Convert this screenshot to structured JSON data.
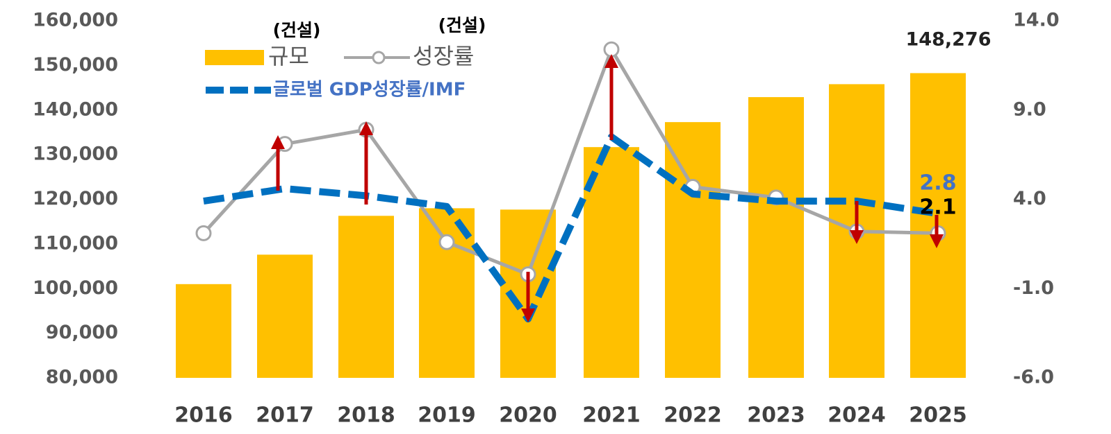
{
  "chart_data": {
    "type": "bar",
    "categories": [
      "2016",
      "2017",
      "2018",
      "2019",
      "2020",
      "2021",
      "2022",
      "2023",
      "2024",
      "2025"
    ],
    "series": [
      {
        "name": "규모",
        "color": "#ffc000",
        "values": [
          101000,
          107600,
          116300,
          118000,
          117700,
          131700,
          137300,
          142900,
          145800,
          148276
        ],
        "value_labels": [
          null,
          null,
          null,
          null,
          null,
          null,
          null,
          null,
          null,
          "148,276"
        ]
      },
      {
        "name": "성장률",
        "color": "#a6a6a6",
        "axis": "y2",
        "values": [
          2.1,
          7.1,
          7.9,
          1.6,
          -0.2,
          12.4,
          4.7,
          4.1,
          2.2,
          2.1
        ],
        "value_labels": [
          null,
          null,
          null,
          null,
          null,
          null,
          null,
          null,
          null,
          "2.1"
        ]
      },
      {
        "name": "글로벌 GDP성장률/IMF",
        "color": "#0070c0",
        "axis": "y2",
        "values": [
          3.9,
          4.6,
          4.2,
          3.6,
          -2.7,
          7.5,
          4.3,
          3.9,
          3.9,
          3.2
        ]
      }
    ],
    "annotations": [
      "(건설)",
      "(건설)",
      "2.8"
    ],
    "ylim": [
      80000,
      160000
    ],
    "yticks": [
      {
        "value": 80000,
        "label": "80,000"
      },
      {
        "value": 90000,
        "label": "90,000"
      },
      {
        "value": 100000,
        "label": "100,000"
      },
      {
        "value": 110000,
        "label": "110,000"
      },
      {
        "value": 120000,
        "label": "120,000"
      },
      {
        "value": 130000,
        "label": "130,000"
      },
      {
        "value": 140000,
        "label": "140,000"
      },
      {
        "value": 150000,
        "label": "150,000"
      },
      {
        "value": 160000,
        "label": "160,000"
      }
    ],
    "y2lim": [
      -6,
      14
    ],
    "y2ticks": [
      {
        "value": -6,
        "label": "-6.0"
      },
      {
        "value": -1,
        "label": "-1.0"
      },
      {
        "value": 4,
        "label": "4.0"
      },
      {
        "value": 9,
        "label": "9.0"
      },
      {
        "value": 14,
        "label": "14.0"
      }
    ],
    "grid": false
  }
}
